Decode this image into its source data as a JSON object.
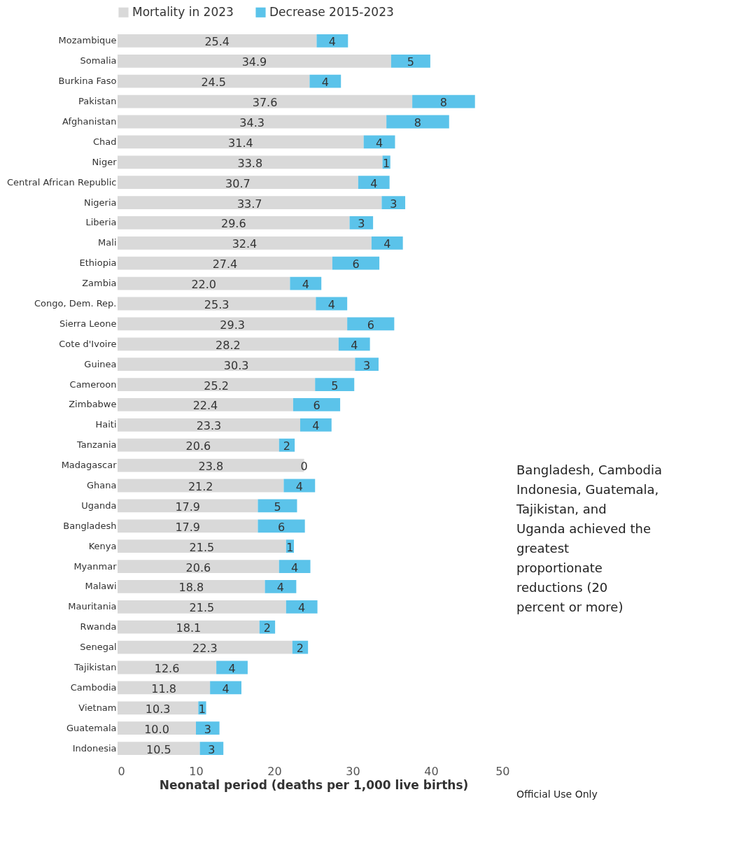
{
  "chart_data": {
    "type": "bar",
    "orientation": "horizontal",
    "stacked": true,
    "xlabel": "Neonatal period (deaths per 1,000 live births)",
    "categories": [
      "Mozambique",
      "Somalia",
      "Burkina Faso",
      "Pakistan",
      "Afghanistan",
      "Chad",
      "Niger",
      "Central African Republic",
      "Nigeria",
      "Liberia",
      "Mali",
      "Ethiopia",
      "Zambia",
      "Congo, Dem. Rep.",
      "Sierra Leone",
      "Cote d'Ivoire",
      "Guinea",
      "Cameroon",
      "Zimbabwe",
      "Haiti",
      "Tanzania",
      "Madagascar",
      "Ghana",
      "Uganda",
      "Bangladesh",
      "Kenya",
      "Myanmar",
      "Malawi",
      "Mauritania",
      "Rwanda",
      "Senegal",
      "Tajikistan",
      "Cambodia",
      "Vietnam",
      "Guatemala",
      "Indonesia"
    ],
    "series": [
      {
        "name": "Mortality in 2023",
        "color": "#d9d9d9",
        "values": [
          25.4,
          34.9,
          24.5,
          37.6,
          34.3,
          31.4,
          33.8,
          30.7,
          33.7,
          29.6,
          32.4,
          27.4,
          22.0,
          25.3,
          29.3,
          28.2,
          30.3,
          25.2,
          22.4,
          23.3,
          20.6,
          23.8,
          21.2,
          17.9,
          17.9,
          21.5,
          20.6,
          18.8,
          21.5,
          18.1,
          22.3,
          12.6,
          11.8,
          10.3,
          10.0,
          10.5
        ],
        "value_labels": [
          "25.4",
          "34.9",
          "24.5",
          "37.6",
          "34.3",
          "31.4",
          "33.8",
          "30.7",
          "33.7",
          "29.6",
          "32.4",
          "27.4",
          "22.0",
          "25.3",
          "29.3",
          "28.2",
          "30.3",
          "25.2",
          "22.4",
          "23.3",
          "20.6",
          "23.8",
          "21.2",
          "17.9",
          "17.9",
          "21.5",
          "20.6",
          "18.8",
          "21.5",
          "18.1",
          "22.3",
          "12.6",
          "11.8",
          "10.3",
          "10.0",
          "10.5"
        ]
      },
      {
        "name": "Decrease 2015-2023",
        "color": "#5bc3ea",
        "values": [
          4,
          5,
          4,
          8,
          8,
          4,
          1,
          4,
          3,
          3,
          4,
          6,
          4,
          4,
          6,
          4,
          3,
          5,
          6,
          4,
          2,
          0,
          4,
          5,
          6,
          1,
          4,
          4,
          4,
          2,
          2,
          4,
          4,
          1,
          3,
          3
        ],
        "value_labels": [
          "4",
          "5",
          "4",
          "8",
          "8",
          "4",
          "1",
          "4",
          "3",
          "3",
          "4",
          "6",
          "4",
          "4",
          "6",
          "4",
          "3",
          "5",
          "6",
          "4",
          "2",
          "0",
          "4",
          "5",
          "6",
          "1",
          "4",
          "4",
          "4",
          "2",
          "2",
          "4",
          "4",
          "1",
          "3",
          "3"
        ]
      }
    ],
    "xlim": [
      0,
      50
    ],
    "xticks": [
      0,
      10,
      20,
      30,
      40,
      50
    ],
    "grid": false,
    "legend": "top",
    "annotations": [
      "Bangladesh, Cambodia Indonesia, Guatemala, Tajikistan, and Uganda achieved the greatest proportionate reductions (20 percent or more)",
      "Official Use Only"
    ]
  }
}
